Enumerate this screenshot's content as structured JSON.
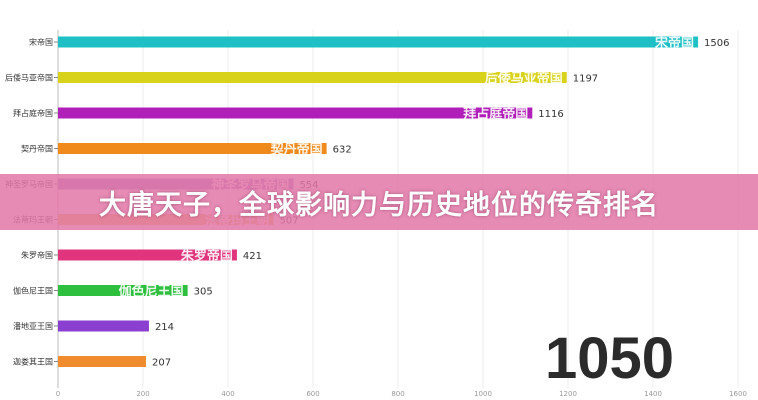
{
  "chart_data": {
    "type": "bar",
    "orientation": "horizontal",
    "categories": [
      "宋帝国",
      "后倭马亚帝国",
      "拜占庭帝国",
      "契丹帝国",
      "神圣罗马帝国",
      "法蒂玛王朝",
      "朱罗帝国",
      "伽色尼王国",
      "潘地亚王国",
      "迦娄其王国"
    ],
    "bar_labels": [
      "宋帝国",
      "后倭马亚帝国",
      "拜占庭帝国",
      "契丹帝国",
      "神圣罗马帝国",
      "法蒂玛王朝",
      "朱罗帝国",
      "伽色尼王国",
      "",
      ""
    ],
    "values": [
      1506,
      1197,
      1116,
      632,
      554,
      507,
      421,
      305,
      214,
      207
    ],
    "value_labels": [
      "1506",
      "1197",
      "1116",
      "632",
      "554",
      "507",
      "421",
      "305",
      "214",
      "207"
    ],
    "colors": [
      "#1ec0c6",
      "#d9d21a",
      "#b01fb8",
      "#f08a1c",
      "#9a6fbd",
      "#e5b04a",
      "#e0357c",
      "#2fbf3f",
      "#8a3fd0",
      "#f08c2e"
    ],
    "xlim": [
      0,
      1600
    ],
    "xticks": [
      0,
      200,
      400,
      600,
      800,
      1000,
      1200,
      1400,
      1600
    ],
    "grid": true,
    "year": "1050"
  },
  "banner": {
    "title": "大唐天子，全球影响力与历史地位的传奇排名"
  }
}
